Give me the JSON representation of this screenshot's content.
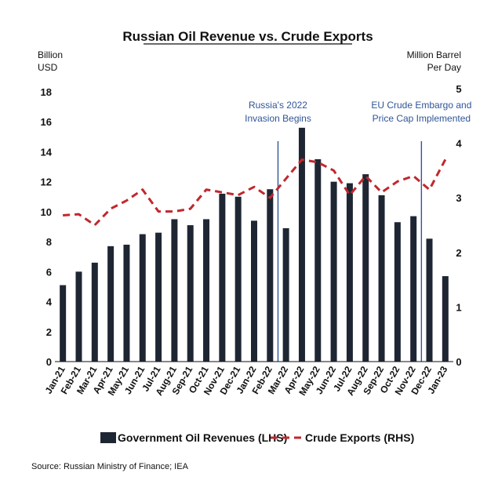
{
  "chart_data": {
    "type": "bar",
    "title": "Russian Oil Revenue vs. Crude Exports",
    "y_left_label": [
      "Billion",
      "USD"
    ],
    "y_right_label": [
      "Million Barrel",
      "Per Day"
    ],
    "ylim_left": [
      0,
      18
    ],
    "ylim_right": [
      0,
      5
    ],
    "y_left_ticks": [
      0,
      2,
      4,
      6,
      8,
      10,
      12,
      14,
      16,
      18
    ],
    "y_right_ticks": [
      0,
      1,
      2,
      3,
      4,
      5
    ],
    "categories": [
      "Jan-21",
      "Feb-21",
      "Mar-21",
      "Apr-21",
      "May-21",
      "Jun-21",
      "Jul-21",
      "Aug-21",
      "Sep-21",
      "Oct-21",
      "Nov-21",
      "Dec-21",
      "Jan-22",
      "Feb-22",
      "Mar-22",
      "Apr-22",
      "May-22",
      "Jun-22",
      "Jul-22",
      "Aug-22",
      "Sep-22",
      "Oct-22",
      "Nov-22",
      "Dec-22",
      "Jan-23"
    ],
    "series": [
      {
        "name": "Government Oil Revenues (LHS)",
        "type": "bar",
        "axis": "left",
        "color": "#1f2633",
        "values": [
          5.1,
          6.0,
          6.6,
          7.7,
          7.8,
          8.5,
          8.6,
          9.5,
          9.1,
          9.5,
          11.2,
          11.0,
          9.4,
          11.5,
          8.9,
          15.6,
          13.5,
          12.0,
          11.9,
          12.5,
          11.1,
          9.3,
          9.7,
          8.2,
          5.7
        ]
      },
      {
        "name": "Crude Exports (RHS)",
        "type": "line",
        "style": "dashed",
        "axis": "right",
        "color": "#c0282d",
        "values": [
          2.68,
          2.7,
          2.5,
          2.8,
          2.95,
          3.15,
          2.75,
          2.75,
          2.8,
          3.15,
          3.1,
          3.05,
          3.2,
          3.0,
          3.35,
          3.7,
          3.65,
          3.5,
          3.05,
          3.4,
          3.1,
          3.3,
          3.4,
          3.15,
          3.7
        ]
      }
    ],
    "annotations": [
      {
        "label": [
          "Russia's 2022",
          "Invasion Begins"
        ],
        "between": [
          "Feb-22",
          "Mar-22"
        ]
      },
      {
        "label": [
          "EU Crude Embargo and",
          "Price Cap Implemented"
        ],
        "between": [
          "Nov-22",
          "Dec-22"
        ]
      }
    ],
    "legend_position": "bottom",
    "grid": false
  },
  "source": "Source: Russian Ministry of Finance; IEA"
}
